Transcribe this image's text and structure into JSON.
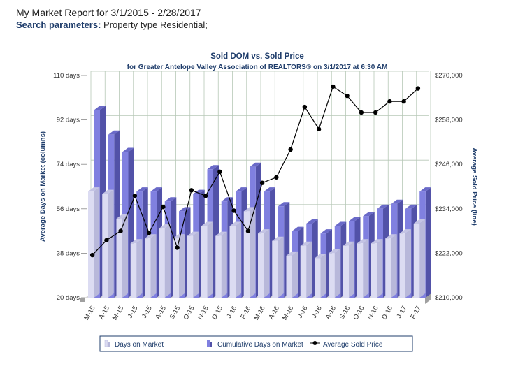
{
  "report": {
    "title": "My Market Report for 3/1/2015 - 2/28/2017",
    "params_label": "Search parameters:",
    "params_value": "Property type Residential;"
  },
  "chart_data": {
    "type": "bar+line",
    "title": "Sold DOM vs. Sold Price",
    "subtitle": "for Greater Antelope Valley Association of REALTORS® on 3/1/2017 at 6:30 AM",
    "ylabel_left": "Average Days on Market (columns)",
    "ylabel_right": "Average Sold Price (line)",
    "left_ticks": [
      "20 days",
      "38 days",
      "56 days",
      "74 days",
      "92 days",
      "110 days"
    ],
    "right_ticks": [
      "$210,000",
      "$222,000",
      "$234,000",
      "$246,000",
      "$258,000",
      "$270,000"
    ],
    "ylim_left": [
      20,
      110
    ],
    "ylim_right": [
      210000,
      270000
    ],
    "categories": [
      "M-15",
      "A-15",
      "M-15",
      "J-15",
      "J-15",
      "A-15",
      "S-15",
      "O-15",
      "N-15",
      "D-15",
      "J-16",
      "F-16",
      "M-16",
      "A-16",
      "M-16",
      "J-16",
      "J-16",
      "A-16",
      "S-16",
      "O-16",
      "N-16",
      "D-16",
      "J-17",
      "F-17"
    ],
    "series": [
      {
        "name": "Days on Market",
        "kind": "bar",
        "values": [
          63,
          62,
          52,
          42,
          44,
          48,
          44,
          45,
          49,
          45,
          49,
          55,
          46,
          43,
          37,
          41,
          36,
          38,
          41,
          42,
          42,
          44,
          46,
          50
        ]
      },
      {
        "name": "Cumulative Days on Market",
        "kind": "bar",
        "values": [
          96,
          86,
          79,
          63,
          63,
          59,
          55,
          62,
          72,
          59,
          63,
          73,
          63,
          57,
          47,
          50,
          46,
          49,
          51,
          53,
          56,
          58,
          56,
          63
        ]
      },
      {
        "name": "Average Sold Price",
        "kind": "line",
        "values": [
          221500,
          225500,
          228000,
          237500,
          227500,
          234500,
          223500,
          239000,
          237500,
          244000,
          233500,
          228000,
          241000,
          242500,
          250000,
          261500,
          255500,
          267000,
          264500,
          260000,
          260000,
          263000,
          263000,
          266500
        ]
      }
    ],
    "colors": {
      "dom": "#dcdcf2",
      "dom_side": "#b8b8da",
      "cum": "#8080e0",
      "cum_side": "#5252a8",
      "line": "#000000",
      "grid": "#b7c8b7",
      "axis_text": "#333333",
      "legend_border": "#1f3d6b"
    }
  }
}
